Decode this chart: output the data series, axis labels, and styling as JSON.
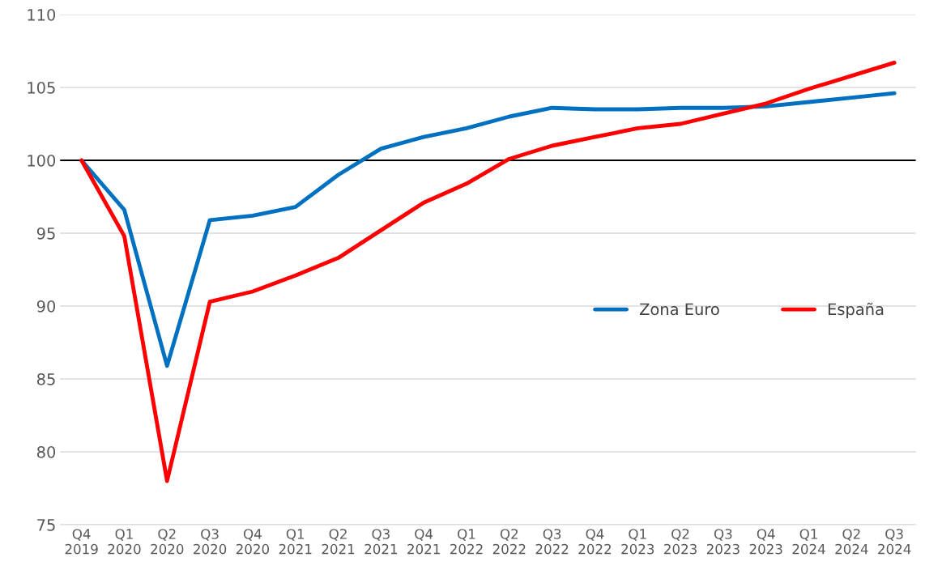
{
  "chart_data": {
    "type": "line",
    "categories": [
      "Q4\n2019",
      "Q1\n2020",
      "Q2\n2020",
      "Q3\n2020",
      "Q4\n2020",
      "Q1\n2021",
      "Q2\n2021",
      "Q3\n2021",
      "Q4\n2021",
      "Q1\n2022",
      "Q2\n2022",
      "Q3\n2022",
      "Q4\n2022",
      "Q1\n2023",
      "Q2\n2023",
      "Q3\n2023",
      "Q4\n2023",
      "Q1\n2024",
      "Q2\n2024",
      "Q3\n2024"
    ],
    "series": [
      {
        "name": "Zona Euro",
        "color": "#0070c0",
        "values": [
          100,
          96.6,
          85.9,
          95.9,
          96.2,
          96.8,
          99.0,
          100.8,
          101.6,
          102.2,
          103.0,
          103.6,
          103.5,
          103.5,
          103.6,
          103.6,
          103.7,
          104.0,
          104.3,
          104.6
        ]
      },
      {
        "name": "España",
        "color": "#ff0000",
        "values": [
          100,
          94.8,
          78.0,
          90.3,
          91.0,
          92.1,
          93.3,
          95.2,
          97.1,
          98.4,
          100.1,
          101.0,
          101.6,
          102.2,
          102.5,
          103.2,
          103.9,
          104.9,
          105.8,
          106.7
        ]
      }
    ],
    "ylim": [
      75,
      110
    ],
    "yticks": [
      75,
      80,
      85,
      90,
      95,
      100,
      105,
      110
    ],
    "grid": "y",
    "ref_lines": [
      {
        "axis": "y",
        "value": 100,
        "color": "#000000"
      }
    ],
    "legend": "right",
    "marker": "none",
    "line_style": "solid"
  }
}
